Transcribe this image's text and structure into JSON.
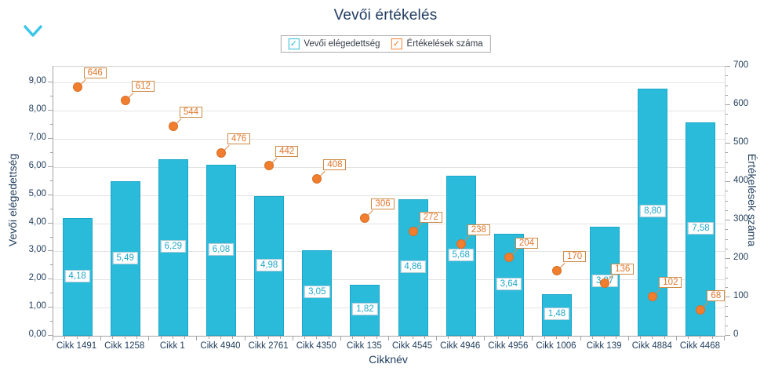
{
  "icons": {
    "collapse_control": "chevron-down",
    "legend_check": "checkmark"
  },
  "legend": {
    "check_glyph": "✓",
    "items": [
      {
        "label": "Vevői elégedettség",
        "color": "#2ABBDB"
      },
      {
        "label": "Értékelések száma",
        "color": "#F07E2E"
      }
    ]
  },
  "chart_data": {
    "type": "combo-bar-scatter",
    "title": "Vevői értékelés",
    "xlabel": "Cikknév",
    "ylabel_left": "Vevői elégedettség",
    "ylabel_right": "Értékelések száma",
    "legend_position": "top-center",
    "grid": "horizontal-major",
    "categories": [
      "Cikk 1491",
      "Cikk 1258",
      "Cikk 1",
      "Cikk 4940",
      "Cikk 2761",
      "Cikk 4350",
      "Cikk 135",
      "Cikk 4545",
      "Cikk 4946",
      "Cikk 4956",
      "Cikk 1006",
      "Cikk 139",
      "Cikk 4884",
      "Cikk 4468"
    ],
    "series": [
      {
        "name": "Vevői elégedettség",
        "type": "bar",
        "axis": "left",
        "color": "#2ABBDB",
        "values": [
          4.18,
          5.49,
          6.29,
          6.08,
          4.98,
          3.05,
          1.82,
          4.86,
          5.68,
          3.64,
          1.48,
          3.87,
          8.8,
          7.58
        ],
        "labels": [
          "4,18",
          "5,49",
          "6,29",
          "6,08",
          "4,98",
          "3,05",
          "1,82",
          "4,86",
          "5,68",
          "3,64",
          "1,48",
          "3,87",
          "8,80",
          "7,58"
        ]
      },
      {
        "name": "Értékelések száma",
        "type": "scatter",
        "axis": "right",
        "color": "#F07E2E",
        "values": [
          646,
          612,
          544,
          476,
          442,
          408,
          306,
          272,
          238,
          204,
          170,
          136,
          102,
          68
        ],
        "labels": [
          "646",
          "612",
          "544",
          "476",
          "442",
          "408",
          "306",
          "272",
          "238",
          "204",
          "170",
          "136",
          "102",
          "68"
        ]
      }
    ],
    "left_axis": {
      "min": 0,
      "max": 9,
      "step": 1,
      "tick_labels": [
        "0,00",
        "1,00",
        "2,00",
        "3,00",
        "4,00",
        "5,00",
        "6,00",
        "7,00",
        "8,00",
        "9,00"
      ]
    },
    "right_axis": {
      "min": 0,
      "max": 700,
      "step": 100,
      "tick_labels": [
        "0",
        "100",
        "200",
        "300",
        "400",
        "500",
        "600",
        "700"
      ]
    }
  }
}
